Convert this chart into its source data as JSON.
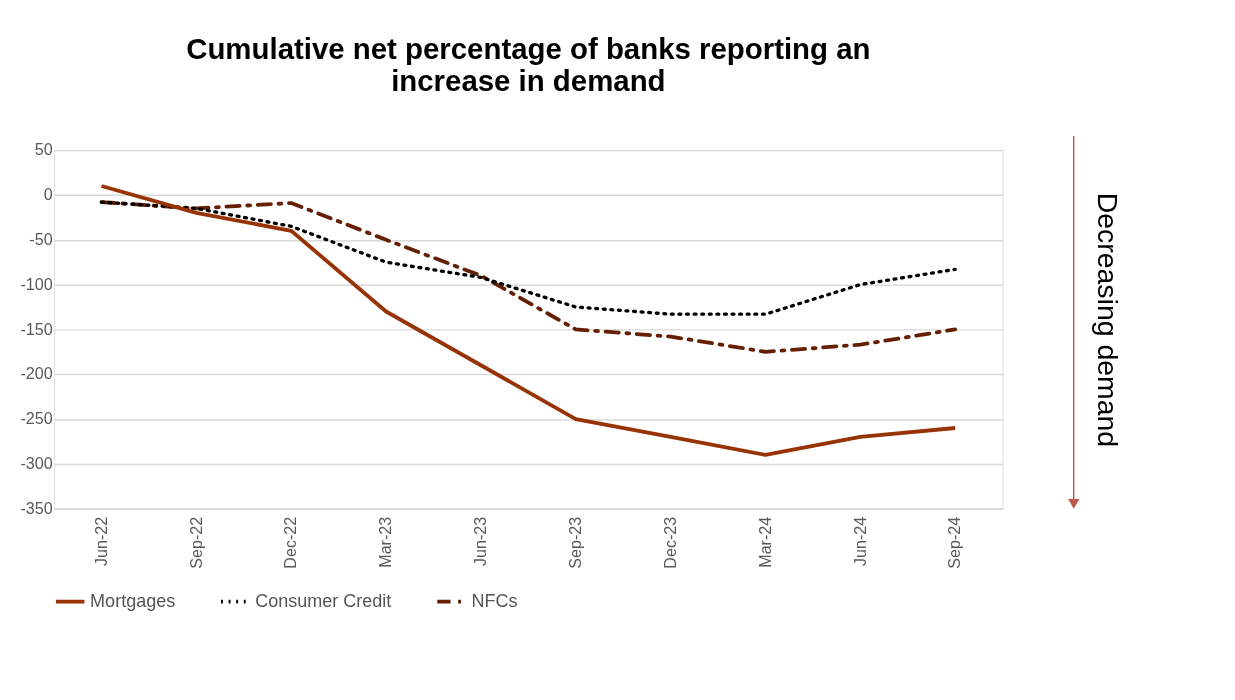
{
  "chart_data": {
    "type": "line",
    "title": [
      "Cumulative net percentage of banks reporting an",
      "increase in demand"
    ],
    "categories": [
      "Jun-22",
      "Sep-22",
      "Dec-22",
      "Mar-23",
      "Jun-23",
      "Sep-23",
      "Dec-23",
      "Mar-24",
      "Jun-24",
      "Sep-24"
    ],
    "series": [
      {
        "name": "Mortgages",
        "color": "#983306",
        "line_style": "solid",
        "values": [
          10,
          -20,
          -40,
          -130,
          -190,
          -250,
          -270,
          -290,
          -270,
          -260
        ]
      },
      {
        "name": "Consumer Credit",
        "color": "#000000",
        "line_style": "dotted",
        "values": [
          -8,
          -15,
          -35,
          -75,
          -92,
          -125,
          -133,
          -133,
          -100,
          -83
        ]
      },
      {
        "name": "NFCs",
        "color": "#652003",
        "line_style": "dashed",
        "values": [
          -8,
          -15,
          -9,
          -50,
          -90,
          -150,
          -158,
          -175,
          -167,
          -150
        ]
      }
    ],
    "ylim": [
      -350,
      50
    ],
    "yticks": [
      -350,
      -300,
      -250,
      -200,
      -150,
      -100,
      -50,
      0,
      50
    ],
    "grid": "y",
    "legend": "bottom",
    "annotations": [
      "Decreasing demand"
    ]
  }
}
